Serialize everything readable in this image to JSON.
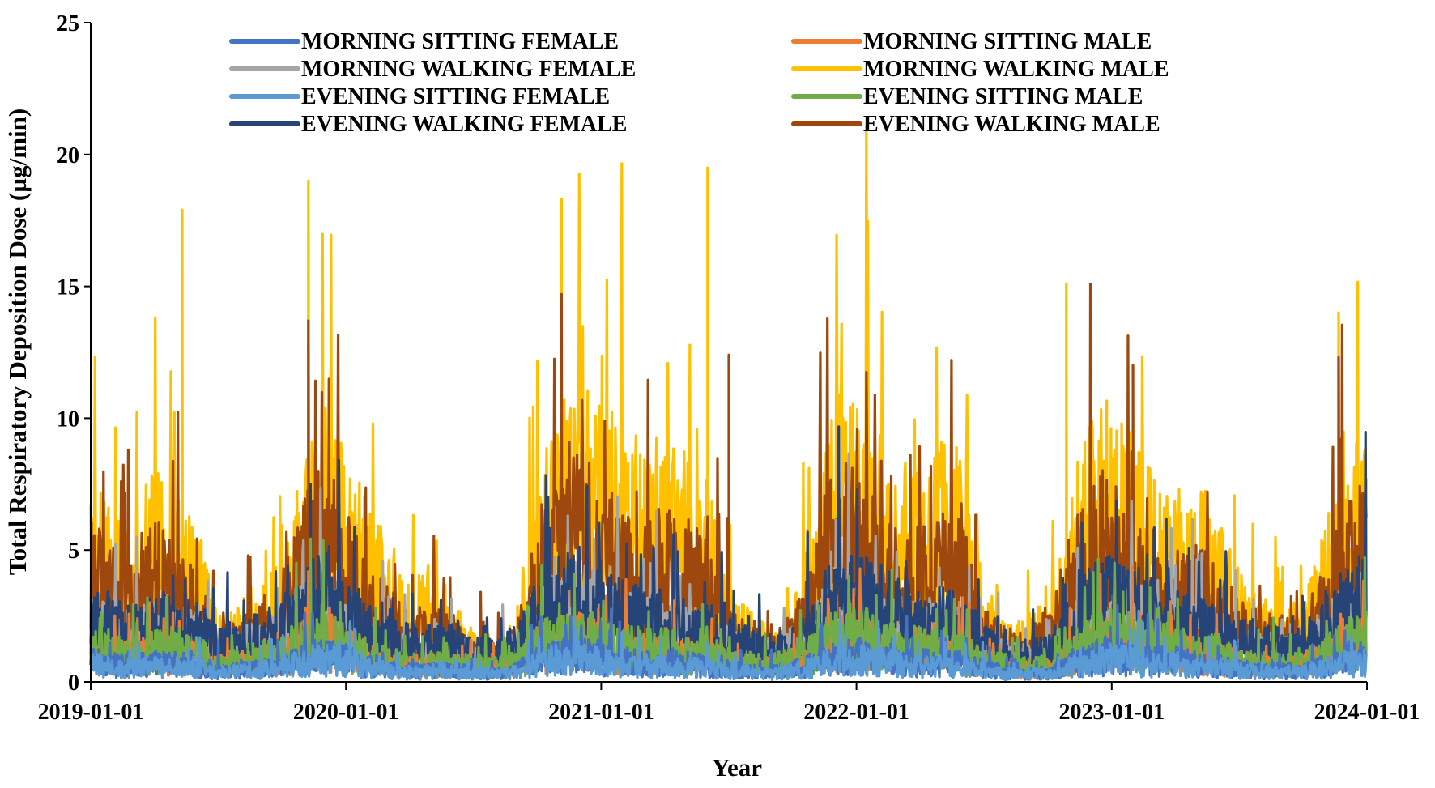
{
  "chart_data": {
    "type": "line",
    "title": "",
    "xlabel": "Year",
    "ylabel": "Total Respiratory Deposition Dose (µg/min)",
    "ylim": [
      0,
      25
    ],
    "yticks": [
      0,
      5,
      10,
      15,
      20,
      25
    ],
    "xticks": [
      "2019-01-01",
      "2020-01-01",
      "2021-01-01",
      "2022-01-01",
      "2023-01-01",
      "2024-01-01"
    ],
    "x_unit": "month start (approx., daily resolution in original)",
    "x": [
      "2019-01",
      "2019-02",
      "2019-03",
      "2019-04",
      "2019-05",
      "2019-06",
      "2019-07",
      "2019-08",
      "2019-09",
      "2019-10",
      "2019-11",
      "2019-12",
      "2020-01",
      "2020-02",
      "2020-03",
      "2020-04",
      "2020-05",
      "2020-06",
      "2020-07",
      "2020-08",
      "2020-09",
      "2020-10",
      "2020-11",
      "2020-12",
      "2021-01",
      "2021-02",
      "2021-03",
      "2021-04",
      "2021-05",
      "2021-06",
      "2021-07",
      "2021-08",
      "2021-09",
      "2021-10",
      "2021-11",
      "2021-12",
      "2022-01",
      "2022-02",
      "2022-03",
      "2022-04",
      "2022-05",
      "2022-06",
      "2022-07",
      "2022-08",
      "2022-09",
      "2022-10",
      "2022-11",
      "2022-12",
      "2023-01",
      "2023-02",
      "2023-03",
      "2023-04",
      "2023-05",
      "2023-06",
      "2023-07",
      "2023-08",
      "2023-09",
      "2023-10",
      "2023-11",
      "2023-12",
      "2024-01"
    ],
    "legend_position": "top",
    "series": [
      {
        "name": "MORNING SITTING FEMALE",
        "color": "#4472C4",
        "values": [
          1.3,
          1.1,
          1.0,
          1.2,
          1.1,
          1.0,
          0.7,
          0.8,
          0.9,
          1.0,
          1.5,
          1.6,
          1.4,
          1.0,
          0.8,
          0.7,
          0.7,
          0.7,
          0.6,
          0.5,
          0.7,
          1.3,
          1.6,
          1.7,
          1.5,
          1.3,
          1.2,
          1.2,
          1.1,
          1.0,
          0.8,
          0.7,
          0.6,
          0.8,
          1.1,
          1.6,
          1.7,
          1.5,
          1.3,
          1.2,
          1.2,
          1.1,
          0.8,
          0.6,
          0.5,
          0.6,
          1.0,
          1.4,
          1.6,
          1.5,
          1.3,
          1.3,
          1.1,
          1.0,
          0.8,
          0.7,
          0.7,
          0.7,
          1.0,
          1.4,
          1.6
        ]
      },
      {
        "name": "MORNING SITTING MALE",
        "color": "#ED7D31",
        "values": [
          1.8,
          1.6,
          1.5,
          1.7,
          1.6,
          1.5,
          1.0,
          1.2,
          1.3,
          1.5,
          2.2,
          2.4,
          2.0,
          1.5,
          1.2,
          1.0,
          1.0,
          1.0,
          0.9,
          0.8,
          1.0,
          1.9,
          2.4,
          2.5,
          2.2,
          1.9,
          1.8,
          1.8,
          1.6,
          1.5,
          1.2,
          1.0,
          0.9,
          1.2,
          1.6,
          2.4,
          2.5,
          2.2,
          1.9,
          1.8,
          1.8,
          1.6,
          1.2,
          0.9,
          0.8,
          0.9,
          1.5,
          2.1,
          2.4,
          2.2,
          1.9,
          1.9,
          1.6,
          1.5,
          1.2,
          1.0,
          1.0,
          1.0,
          1.5,
          2.1,
          2.4
        ]
      },
      {
        "name": "MORNING WALKING FEMALE",
        "color": "#A5A5A5",
        "values": [
          3.2,
          2.8,
          2.6,
          3.0,
          2.8,
          2.6,
          1.8,
          2.0,
          2.3,
          2.6,
          3.9,
          4.2,
          3.5,
          2.6,
          2.0,
          1.8,
          1.8,
          1.8,
          1.5,
          1.4,
          1.8,
          3.3,
          4.2,
          4.4,
          3.9,
          3.3,
          3.1,
          3.1,
          2.8,
          2.6,
          2.0,
          1.8,
          1.5,
          2.0,
          2.8,
          4.2,
          4.4,
          3.9,
          3.3,
          3.1,
          3.1,
          2.8,
          2.0,
          1.5,
          1.4,
          1.5,
          2.6,
          3.7,
          4.2,
          3.9,
          3.3,
          3.3,
          2.8,
          2.6,
          2.0,
          1.8,
          1.8,
          1.8,
          2.6,
          3.7,
          4.2
        ]
      },
      {
        "name": "MORNING WALKING MALE",
        "color": "#FFC000",
        "values": [
          7.5,
          7.0,
          6.0,
          8.5,
          7.0,
          5.5,
          2.5,
          3.0,
          3.5,
          4.5,
          8.0,
          10.0,
          8.5,
          6.5,
          5.5,
          3.5,
          4.5,
          3.0,
          2.0,
          1.8,
          2.5,
          7.5,
          10.0,
          11.0,
          10.5,
          9.5,
          9.0,
          9.0,
          8.5,
          7.5,
          3.5,
          2.5,
          2.0,
          3.0,
          6.0,
          10.5,
          11.0,
          9.5,
          8.0,
          8.0,
          9.0,
          8.0,
          3.5,
          2.5,
          2.5,
          3.0,
          7.0,
          9.5,
          11.0,
          9.0,
          7.5,
          7.0,
          7.0,
          6.5,
          4.0,
          3.0,
          3.0,
          3.0,
          5.5,
          9.5,
          10.0
        ]
      },
      {
        "name": "EVENING SITTING FEMALE",
        "color": "#5B9BD5",
        "values": [
          1.1,
          1.0,
          0.9,
          1.0,
          1.0,
          0.9,
          0.6,
          0.7,
          0.8,
          0.9,
          1.3,
          1.4,
          1.2,
          0.9,
          0.7,
          0.6,
          0.6,
          0.6,
          0.5,
          0.5,
          0.6,
          1.1,
          1.4,
          1.5,
          1.3,
          1.1,
          1.0,
          1.0,
          0.9,
          0.9,
          0.7,
          0.6,
          0.5,
          0.7,
          0.9,
          1.4,
          1.5,
          1.3,
          1.1,
          1.0,
          1.0,
          0.9,
          0.7,
          0.5,
          0.5,
          0.5,
          0.9,
          1.2,
          1.4,
          1.3,
          1.1,
          1.1,
          0.9,
          0.9,
          0.7,
          0.6,
          0.6,
          0.6,
          0.9,
          1.2,
          1.4
        ]
      },
      {
        "name": "EVENING SITTING MALE",
        "color": "#70AD47",
        "values": [
          2.0,
          1.8,
          1.7,
          1.9,
          1.8,
          1.7,
          1.1,
          1.3,
          1.5,
          1.7,
          2.5,
          2.7,
          2.3,
          1.7,
          1.3,
          1.1,
          1.1,
          1.1,
          1.0,
          0.9,
          1.1,
          2.1,
          2.7,
          2.8,
          2.5,
          2.1,
          2.0,
          2.0,
          1.8,
          1.7,
          1.3,
          1.1,
          1.0,
          1.3,
          1.8,
          2.7,
          2.8,
          2.5,
          2.1,
          2.0,
          2.0,
          1.8,
          1.3,
          1.0,
          0.9,
          1.0,
          1.7,
          2.4,
          2.7,
          2.5,
          2.1,
          2.1,
          1.8,
          1.7,
          1.3,
          1.1,
          1.1,
          1.1,
          1.7,
          2.4,
          2.7
        ]
      },
      {
        "name": "EVENING WALKING FEMALE",
        "color": "#264478",
        "values": [
          3.6,
          3.2,
          3.0,
          3.4,
          3.2,
          3.0,
          2.1,
          2.3,
          2.6,
          3.0,
          4.4,
          4.8,
          4.0,
          3.0,
          2.3,
          2.1,
          2.1,
          2.1,
          1.7,
          1.6,
          2.1,
          3.8,
          4.8,
          5.0,
          4.4,
          3.8,
          3.5,
          3.5,
          3.2,
          3.0,
          2.3,
          2.1,
          1.7,
          2.3,
          3.2,
          4.8,
          5.0,
          4.4,
          3.8,
          3.5,
          3.5,
          3.2,
          2.3,
          1.7,
          1.6,
          1.7,
          3.0,
          4.2,
          4.8,
          4.4,
          3.8,
          3.8,
          3.2,
          3.0,
          2.3,
          2.1,
          2.1,
          2.1,
          3.0,
          4.2,
          4.8
        ]
      },
      {
        "name": "EVENING WALKING MALE",
        "color": "#9E480E",
        "values": [
          6.0,
          5.0,
          4.5,
          6.0,
          5.0,
          4.0,
          2.0,
          2.5,
          3.0,
          4.0,
          7.0,
          8.0,
          6.5,
          4.5,
          3.5,
          2.5,
          3.0,
          2.5,
          1.8,
          1.5,
          2.0,
          5.5,
          8.0,
          8.5,
          7.5,
          6.5,
          6.0,
          6.5,
          6.0,
          5.5,
          2.8,
          2.0,
          1.8,
          2.5,
          5.0,
          8.0,
          8.0,
          6.5,
          5.5,
          5.5,
          6.5,
          6.0,
          2.8,
          2.0,
          2.0,
          2.5,
          5.5,
          7.5,
          8.0,
          6.5,
          5.5,
          5.0,
          5.0,
          4.5,
          3.0,
          2.5,
          2.5,
          2.5,
          4.5,
          7.0,
          7.5
        ]
      }
    ],
    "annotated_peaks": [
      {
        "series": "MORNING WALKING MALE",
        "x": "2019-11-08",
        "y": 19.0
      },
      {
        "series": "MORNING WALKING MALE",
        "x": "2021-06-01",
        "y": 19.5
      },
      {
        "series": "MORNING WALKING MALE",
        "x": "2020-11-05",
        "y": 18.3
      },
      {
        "series": "MORNING WALKING MALE",
        "x": "2019-05-10",
        "y": 17.9
      },
      {
        "series": "MORNING WALKING MALE",
        "x": "2022-10-27",
        "y": 15.1
      },
      {
        "series": "EVENING WALKING MALE",
        "x": "2020-11-05",
        "y": 14.7
      },
      {
        "series": "EVENING WALKING MALE",
        "x": "2019-11-08",
        "y": 13.7
      },
      {
        "series": "MORNING WALKING MALE",
        "x": "2023-11-21",
        "y": 14.0
      },
      {
        "series": "EVENING WALKING MALE",
        "x": "2021-07-01",
        "y": 12.4
      },
      {
        "series": "EVENING WALKING MALE",
        "x": "2023-11-21",
        "y": 12.3
      },
      {
        "series": "EVENING WALKING MALE",
        "x": "2023-02-01",
        "y": 12.0
      }
    ]
  }
}
